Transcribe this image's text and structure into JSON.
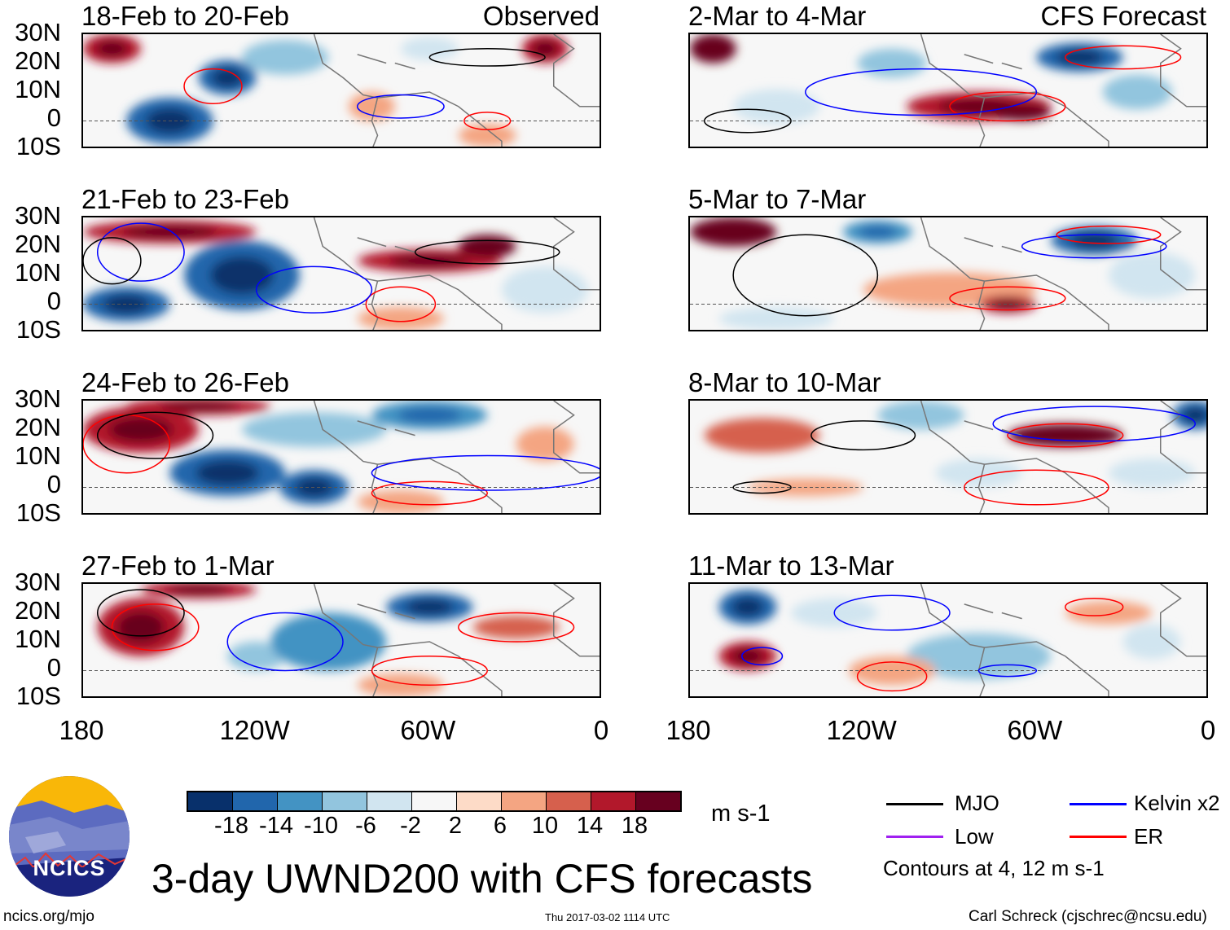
{
  "chart_data": {
    "type": "heatmap",
    "title": "3-day UWND200 with CFS forecasts",
    "variable_units": "m s-1",
    "lat_ticks": [
      "30N",
      "20N",
      "10N",
      "0",
      "10S"
    ],
    "lon_ticks": [
      "180",
      "120W",
      "60W",
      "0"
    ],
    "lat_range": [
      -10,
      30
    ],
    "lon_range_west": [
      180,
      0
    ],
    "colorbar": {
      "levels": [
        "-18",
        "-14",
        "-10",
        "-6",
        "-2",
        "2",
        "6",
        "10",
        "14",
        "18"
      ],
      "colors": [
        "#08306b",
        "#2166ac",
        "#4393c3",
        "#92c5de",
        "#d1e5f0",
        "#f7f7f7",
        "#fddbc7",
        "#f4a582",
        "#d6604d",
        "#b2182b",
        "#67001f"
      ]
    },
    "legend": {
      "items": [
        {
          "label": "MJO",
          "color": "#000000"
        },
        {
          "label": "Kelvin x2",
          "color": "#0000ff"
        },
        {
          "label": "Low",
          "color": "#a020f0"
        },
        {
          "label": "ER",
          "color": "#ff0000"
        }
      ],
      "note": "Contours at 4, 12 m s-1"
    },
    "column_labels": {
      "left": "Observed",
      "right": "CFS Forecast"
    },
    "panels": [
      {
        "title": "18-Feb to 20-Feb",
        "col": 0,
        "row": 0,
        "features": [
          [
            170,
            25,
            10,
            5,
            14
          ],
          [
            130,
            15,
            10,
            6,
            -18
          ],
          [
            150,
            0,
            15,
            8,
            -16
          ],
          [
            110,
            22,
            15,
            6,
            -10
          ],
          [
            80,
            5,
            8,
            5,
            8
          ],
          [
            20,
            25,
            8,
            5,
            14
          ],
          [
            40,
            -5,
            10,
            4,
            6
          ],
          [
            60,
            25,
            10,
            4,
            -6
          ]
        ],
        "contours": [
          [
            135,
            12,
            10,
            6,
            "#ff0000"
          ],
          [
            70,
            5,
            15,
            4,
            "#0000ff"
          ],
          [
            40,
            0,
            8,
            3,
            "#ff0000"
          ],
          [
            40,
            22,
            20,
            3,
            "#000000"
          ]
        ]
      },
      {
        "title": "2-Mar to 4-Mar",
        "col": 1,
        "row": 0,
        "features": [
          [
            172,
            25,
            8,
            5,
            18
          ],
          [
            110,
            20,
            12,
            5,
            -8
          ],
          [
            80,
            5,
            25,
            5,
            14
          ],
          [
            65,
            3,
            10,
            3,
            18
          ],
          [
            45,
            22,
            15,
            5,
            -16
          ],
          [
            25,
            10,
            12,
            6,
            -10
          ],
          [
            150,
            5,
            15,
            6,
            -6
          ]
        ],
        "contours": [
          [
            70,
            5,
            20,
            5,
            "#ff0000"
          ],
          [
            100,
            10,
            40,
            8,
            "#0000ff"
          ],
          [
            30,
            22,
            20,
            4,
            "#ff0000"
          ],
          [
            160,
            0,
            15,
            4,
            "#000000"
          ]
        ]
      },
      {
        "title": "21-Feb to 23-Feb",
        "col": 0,
        "row": 1,
        "features": [
          [
            150,
            25,
            30,
            4,
            14
          ],
          [
            125,
            10,
            20,
            12,
            -18
          ],
          [
            165,
            0,
            15,
            6,
            -16
          ],
          [
            60,
            15,
            25,
            4,
            14
          ],
          [
            40,
            20,
            10,
            4,
            18
          ],
          [
            70,
            -5,
            15,
            4,
            6
          ],
          [
            20,
            5,
            15,
            8,
            -6
          ]
        ],
        "contours": [
          [
            160,
            18,
            15,
            10,
            "#0000ff"
          ],
          [
            170,
            15,
            10,
            8,
            "#000000"
          ],
          [
            70,
            0,
            12,
            6,
            "#ff0000"
          ],
          [
            100,
            5,
            20,
            8,
            "#0000ff"
          ],
          [
            40,
            18,
            25,
            4,
            "#000000"
          ]
        ]
      },
      {
        "title": "5-Mar to 7-Mar",
        "col": 1,
        "row": 1,
        "features": [
          [
            165,
            25,
            15,
            5,
            18
          ],
          [
            115,
            25,
            12,
            4,
            -14
          ],
          [
            40,
            22,
            15,
            5,
            -18
          ],
          [
            90,
            5,
            30,
            6,
            6
          ],
          [
            70,
            0,
            10,
            3,
            14
          ],
          [
            20,
            10,
            15,
            8,
            -6
          ],
          [
            150,
            -5,
            20,
            4,
            -6
          ]
        ],
        "contours": [
          [
            140,
            10,
            25,
            14,
            "#000000"
          ],
          [
            70,
            2,
            20,
            4,
            "#ff0000"
          ],
          [
            40,
            20,
            25,
            4,
            "#0000ff"
          ],
          [
            35,
            24,
            18,
            3,
            "#ff0000"
          ]
        ]
      },
      {
        "title": "24-Feb to 26-Feb",
        "col": 0,
        "row": 2,
        "features": [
          [
            160,
            20,
            20,
            8,
            16
          ],
          [
            140,
            28,
            25,
            3,
            14
          ],
          [
            130,
            5,
            20,
            8,
            -16
          ],
          [
            100,
            0,
            12,
            6,
            -18
          ],
          [
            60,
            25,
            20,
            5,
            -14
          ],
          [
            20,
            15,
            10,
            6,
            6
          ],
          [
            70,
            -5,
            15,
            4,
            6
          ],
          [
            100,
            20,
            25,
            6,
            -10
          ]
        ],
        "contours": [
          [
            165,
            15,
            15,
            10,
            "#ff0000"
          ],
          [
            155,
            18,
            20,
            8,
            "#000000"
          ],
          [
            60,
            -2,
            20,
            4,
            "#ff0000"
          ],
          [
            40,
            5,
            40,
            6,
            "#0000ff"
          ]
        ]
      },
      {
        "title": "8-Mar to 10-Mar",
        "col": 1,
        "row": 2,
        "features": [
          [
            155,
            18,
            20,
            6,
            10
          ],
          [
            50,
            18,
            20,
            4,
            18
          ],
          [
            100,
            25,
            15,
            5,
            -10
          ],
          [
            5,
            25,
            8,
            5,
            -18
          ],
          [
            140,
            0,
            20,
            3,
            6
          ],
          [
            80,
            5,
            15,
            5,
            -6
          ],
          [
            20,
            5,
            15,
            5,
            -6
          ]
        ],
        "contours": [
          [
            120,
            18,
            18,
            5,
            "#000000"
          ],
          [
            50,
            18,
            20,
            4,
            "#ff0000"
          ],
          [
            60,
            0,
            25,
            6,
            "#ff0000"
          ],
          [
            40,
            22,
            35,
            6,
            "#0000ff"
          ],
          [
            155,
            0,
            10,
            2,
            "#000000"
          ]
        ]
      },
      {
        "title": "27-Feb to 1-Mar",
        "col": 0,
        "row": 3,
        "features": [
          [
            160,
            15,
            15,
            10,
            16
          ],
          [
            140,
            28,
            20,
            3,
            14
          ],
          [
            120,
            5,
            10,
            5,
            -10
          ],
          [
            95,
            10,
            20,
            10,
            -12
          ],
          [
            60,
            22,
            15,
            5,
            -18
          ],
          [
            30,
            15,
            15,
            4,
            10
          ],
          [
            70,
            -5,
            15,
            4,
            6
          ]
        ],
        "contours": [
          [
            155,
            15,
            15,
            8,
            "#ff0000"
          ],
          [
            160,
            20,
            15,
            8,
            "#000000"
          ],
          [
            60,
            0,
            20,
            5,
            "#ff0000"
          ],
          [
            30,
            15,
            20,
            5,
            "#ff0000"
          ],
          [
            110,
            10,
            20,
            10,
            "#0000ff"
          ]
        ]
      },
      {
        "title": "11-Mar to 13-Mar",
        "col": 1,
        "row": 3,
        "features": [
          [
            160,
            22,
            10,
            6,
            -16
          ],
          [
            160,
            5,
            10,
            5,
            14
          ],
          [
            80,
            5,
            25,
            8,
            -10
          ],
          [
            110,
            0,
            15,
            5,
            6
          ],
          [
            20,
            10,
            10,
            6,
            -6
          ],
          [
            35,
            20,
            15,
            4,
            6
          ],
          [
            130,
            20,
            15,
            5,
            -6
          ]
        ],
        "contours": [
          [
            155,
            5,
            7,
            3,
            "#0000ff"
          ],
          [
            110,
            -2,
            12,
            5,
            "#ff0000"
          ],
          [
            110,
            20,
            20,
            6,
            "#0000ff"
          ],
          [
            40,
            22,
            10,
            3,
            "#ff0000"
          ],
          [
            70,
            0,
            10,
            2,
            "#0000ff"
          ]
        ]
      }
    ]
  },
  "footer": {
    "logo_text": "NCICS",
    "url": "ncics.org/mjo",
    "timestamp": "Thu 2017-03-02 1114 UTC",
    "author": "Carl Schreck (cjschrec@ncsu.edu)"
  }
}
